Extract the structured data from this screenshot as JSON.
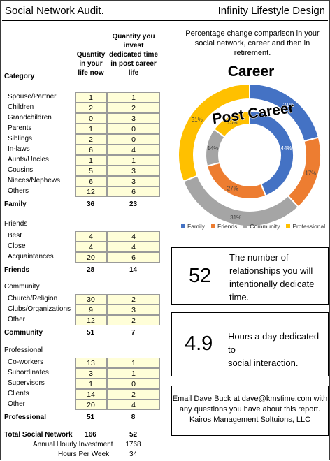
{
  "header": {
    "title": "Social Network Audit.",
    "brand": "Infinity Lifestyle Design"
  },
  "columns": {
    "category": "Category",
    "now": [
      "Quantity",
      "in your",
      "life now"
    ],
    "future": [
      "Quantity you",
      "invest",
      "dedicated time",
      "in post career",
      "life"
    ]
  },
  "family": {
    "rows": [
      {
        "label": "Spouse/Partner",
        "now": "1",
        "future": "1"
      },
      {
        "label": "Children",
        "now": "2",
        "future": "2"
      },
      {
        "label": "Grandchildren",
        "now": "0",
        "future": "3"
      },
      {
        "label": "Parents",
        "now": "1",
        "future": "0"
      },
      {
        "label": "Siblings",
        "now": "2",
        "future": "0"
      },
      {
        "label": "In-laws",
        "now": "6",
        "future": "4"
      },
      {
        "label": "Aunts/Uncles",
        "now": "1",
        "future": "1"
      },
      {
        "label": "Cousins",
        "now": "5",
        "future": "3"
      },
      {
        "label": "Nieces/Nephews",
        "now": "6",
        "future": "3"
      },
      {
        "label": "Others",
        "now": "12",
        "future": "6"
      }
    ],
    "total": {
      "label": "Family",
      "now": "36",
      "future": "23"
    }
  },
  "friends": {
    "title": "Friends",
    "rows": [
      {
        "label": "Best",
        "now": "4",
        "future": "4"
      },
      {
        "label": "Close",
        "now": "4",
        "future": "4"
      },
      {
        "label": "Acquaintances",
        "now": "20",
        "future": "6"
      }
    ],
    "total": {
      "label": "Friends",
      "now": "28",
      "future": "14"
    }
  },
  "community": {
    "title": "Community",
    "rows": [
      {
        "label": "Church/Religion",
        "now": "30",
        "future": "2"
      },
      {
        "label": "Clubs/Organizations",
        "now": "9",
        "future": "3"
      },
      {
        "label": "Other",
        "now": "12",
        "future": "2"
      }
    ],
    "total": {
      "label": "Community",
      "now": "51",
      "future": "7"
    }
  },
  "professional": {
    "title": "Professional",
    "rows": [
      {
        "label": "Co-workers",
        "now": "13",
        "future": "1"
      },
      {
        "label": "Subordinates",
        "now": "3",
        "future": "1"
      },
      {
        "label": "Supervisors",
        "now": "1",
        "future": "0"
      },
      {
        "label": "Clients",
        "now": "14",
        "future": "2"
      },
      {
        "label": "Other",
        "now": "20",
        "future": "4"
      }
    ],
    "total": {
      "label": "Professional",
      "now": "51",
      "future": "8"
    }
  },
  "summary": {
    "total_label": "Total Social Network",
    "total_now": "166",
    "total_future": "52",
    "annual_label": "Annual Hourly Investment",
    "annual_value": "1768",
    "weekly_label": "Hours Per Week",
    "weekly_value": "34"
  },
  "chart_data": {
    "type": "donut",
    "title": "Percentage change comparison in your social network, career and then in retirement.",
    "categories": [
      "Family",
      "Friends",
      "Community",
      "Professional"
    ],
    "colors": [
      "#4472c4",
      "#ed7d31",
      "#a5a5a5",
      "#ffc000"
    ],
    "series": [
      {
        "name": "Career",
        "values": [
          21,
          17,
          31,
          31
        ],
        "labels": [
          "21%",
          "17%",
          "31%",
          "31%"
        ]
      },
      {
        "name": "Post Career",
        "values": [
          44,
          27,
          14,
          15
        ],
        "labels": [
          "44%",
          "27%",
          "14%",
          "15%"
        ]
      }
    ]
  },
  "stats": {
    "relationships_value": "52",
    "relationships_text": [
      "The number of",
      "relationships you will",
      "intentionally dedicate",
      "time."
    ],
    "hours_value": "4.9",
    "hours_text": [
      "Hours a day dedicated to",
      "social interaction."
    ]
  },
  "contact": {
    "lines": [
      "Email Dave Buck at dave@kmstime.com with",
      "any questions you have about this report.",
      "Kairos Management Soltuions, LLC"
    ]
  }
}
